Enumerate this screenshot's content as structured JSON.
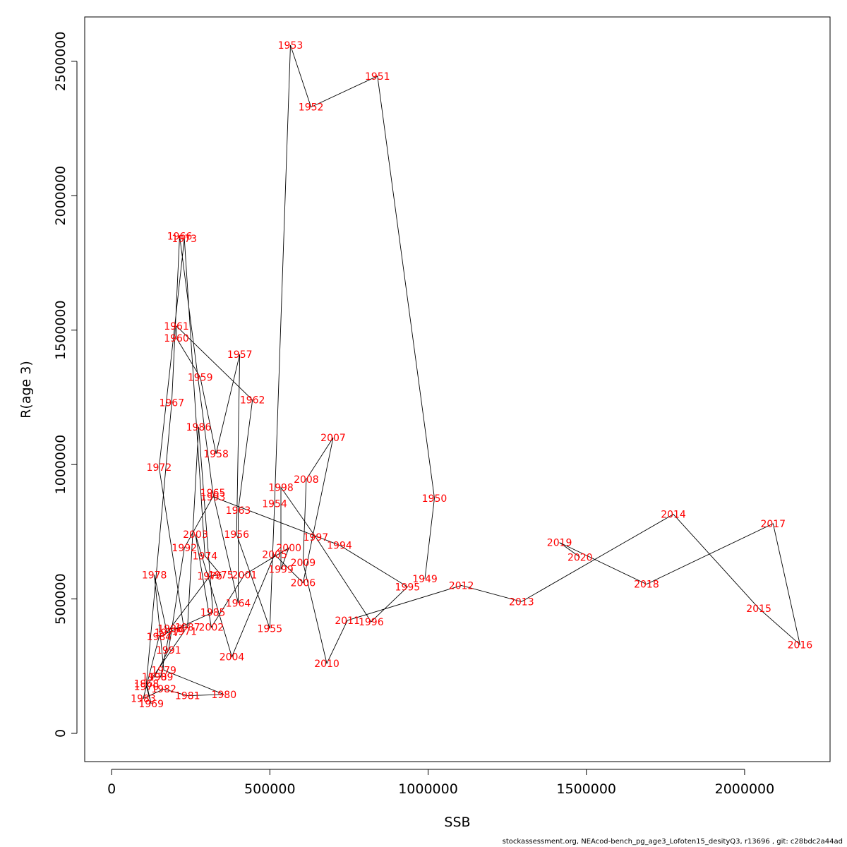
{
  "footer": "stockassessment.org, NEAcod-bench_pg_age3_Lofoten15_desityQ3, r13696 , git: c28bdc2a44ad",
  "chart_data": {
    "type": "scatter",
    "title": "",
    "xlabel": "SSB",
    "ylabel": "R(age 3)",
    "xlim": [
      -85000,
      2270000
    ],
    "ylim": [
      -105000,
      2665000
    ],
    "xticks": [
      0,
      500000,
      1000000,
      1500000,
      2000000
    ],
    "xtick_labels": [
      "0",
      "500000",
      "1000000",
      "1500000",
      "2000000"
    ],
    "yticks": [
      0,
      500000,
      1000000,
      1500000,
      2000000,
      2500000
    ],
    "ytick_labels": [
      "0",
      "500000",
      "1000000",
      "1500000",
      "2000000",
      "2500000"
    ],
    "grid": false,
    "line_color": "#000000",
    "label_color": "#ff0000",
    "points": [
      {
        "year": "1949",
        "x": 990000,
        "y": 575000
      },
      {
        "year": "1950",
        "x": 1020000,
        "y": 875000
      },
      {
        "year": "1951",
        "x": 840000,
        "y": 2445000
      },
      {
        "year": "1952",
        "x": 630000,
        "y": 2330000
      },
      {
        "year": "1953",
        "x": 565000,
        "y": 2560000
      },
      {
        "year": "1954",
        "x": 515000,
        "y": 855000
      },
      {
        "year": "1955",
        "x": 500000,
        "y": 390000
      },
      {
        "year": "1956",
        "x": 395000,
        "y": 740000
      },
      {
        "year": "1957",
        "x": 405000,
        "y": 1410000
      },
      {
        "year": "1958",
        "x": 330000,
        "y": 1040000
      },
      {
        "year": "1959",
        "x": 280000,
        "y": 1325000
      },
      {
        "year": "1960",
        "x": 205000,
        "y": 1470000
      },
      {
        "year": "1961",
        "x": 205000,
        "y": 1515000
      },
      {
        "year": "1962",
        "x": 445000,
        "y": 1240000
      },
      {
        "year": "1963",
        "x": 400000,
        "y": 830000
      },
      {
        "year": "1964",
        "x": 400000,
        "y": 485000
      },
      {
        "year": "1965",
        "x": 320000,
        "y": 895000
      },
      {
        "year": "1966",
        "x": 215000,
        "y": 1850000
      },
      {
        "year": "1967",
        "x": 190000,
        "y": 1230000
      },
      {
        "year": "1968",
        "x": 110000,
        "y": 185000
      },
      {
        "year": "1969",
        "x": 125000,
        "y": 110000
      },
      {
        "year": "1970",
        "x": 110000,
        "y": 175000
      },
      {
        "year": "1971",
        "x": 230000,
        "y": 380000
      },
      {
        "year": "1972",
        "x": 150000,
        "y": 990000
      },
      {
        "year": "1973",
        "x": 230000,
        "y": 1840000
      },
      {
        "year": "1974",
        "x": 295000,
        "y": 660000
      },
      {
        "year": "1975",
        "x": 345000,
        "y": 590000
      },
      {
        "year": "1976",
        "x": 310000,
        "y": 585000
      },
      {
        "year": "1977",
        "x": 175000,
        "y": 375000
      },
      {
        "year": "1978",
        "x": 135000,
        "y": 590000
      },
      {
        "year": "1979",
        "x": 165000,
        "y": 235000
      },
      {
        "year": "1980",
        "x": 355000,
        "y": 145000
      },
      {
        "year": "1981",
        "x": 240000,
        "y": 140000
      },
      {
        "year": "1982",
        "x": 165000,
        "y": 165000
      },
      {
        "year": "1983",
        "x": 100000,
        "y": 130000
      },
      {
        "year": "1984",
        "x": 150000,
        "y": 360000
      },
      {
        "year": "1985",
        "x": 320000,
        "y": 450000
      },
      {
        "year": "1986",
        "x": 275000,
        "y": 1140000
      },
      {
        "year": "1987",
        "x": 240000,
        "y": 395000
      },
      {
        "year": "1988",
        "x": 185000,
        "y": 390000
      },
      {
        "year": "1989",
        "x": 155000,
        "y": 210000
      },
      {
        "year": "1990",
        "x": 135000,
        "y": 210000
      },
      {
        "year": "1991",
        "x": 180000,
        "y": 310000
      },
      {
        "year": "1992",
        "x": 230000,
        "y": 690000
      },
      {
        "year": "1993",
        "x": 320000,
        "y": 880000
      },
      {
        "year": "1994",
        "x": 720000,
        "y": 700000
      },
      {
        "year": "1995",
        "x": 935000,
        "y": 545000
      },
      {
        "year": "1996",
        "x": 820000,
        "y": 415000
      },
      {
        "year": "1997",
        "x": 645000,
        "y": 730000
      },
      {
        "year": "1998",
        "x": 535000,
        "y": 915000
      },
      {
        "year": "1999",
        "x": 535000,
        "y": 610000
      },
      {
        "year": "2000",
        "x": 560000,
        "y": 690000
      },
      {
        "year": "2001",
        "x": 420000,
        "y": 590000
      },
      {
        "year": "2002",
        "x": 315000,
        "y": 395000
      },
      {
        "year": "2003",
        "x": 265000,
        "y": 740000
      },
      {
        "year": "2004",
        "x": 380000,
        "y": 285000
      },
      {
        "year": "2005",
        "x": 515000,
        "y": 665000
      },
      {
        "year": "2006",
        "x": 605000,
        "y": 560000
      },
      {
        "year": "2007",
        "x": 700000,
        "y": 1100000
      },
      {
        "year": "2008",
        "x": 615000,
        "y": 945000
      },
      {
        "year": "2009",
        "x": 605000,
        "y": 635000
      },
      {
        "year": "2010",
        "x": 680000,
        "y": 260000
      },
      {
        "year": "2011",
        "x": 745000,
        "y": 420000
      },
      {
        "year": "2012",
        "x": 1105000,
        "y": 550000
      },
      {
        "year": "2013",
        "x": 1295000,
        "y": 490000
      },
      {
        "year": "2014",
        "x": 1775000,
        "y": 815000
      },
      {
        "year": "2015",
        "x": 2045000,
        "y": 465000
      },
      {
        "year": "2016",
        "x": 2175000,
        "y": 330000
      },
      {
        "year": "2017",
        "x": 2090000,
        "y": 780000
      },
      {
        "year": "2018",
        "x": 1690000,
        "y": 555000
      },
      {
        "year": "2019",
        "x": 1415000,
        "y": 710000
      },
      {
        "year": "2020",
        "x": 1480000,
        "y": 655000
      }
    ]
  }
}
